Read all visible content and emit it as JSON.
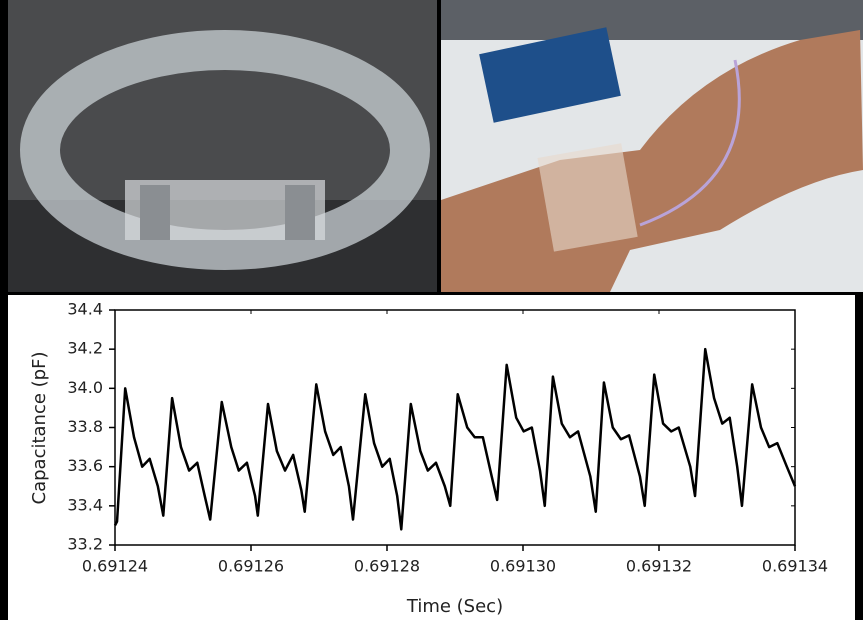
{
  "chart_data": {
    "type": "line",
    "x_label": "Time (Sec)",
    "y_label": "Capacitance (pF)",
    "xlim": [
      0.69124,
      0.69134
    ],
    "ylim": [
      33.2,
      34.4
    ],
    "xticks": [
      0.69124,
      0.69126,
      0.69128,
      {
        "value": 0.6913,
        "label": "0.69130"
      },
      0.69132,
      0.69134
    ],
    "yticks": [
      33.2,
      33.4,
      33.6,
      33.8,
      {
        "value": 34,
        "label": "34.0"
      },
      34.2,
      34.4
    ],
    "grid": false,
    "series": [
      {
        "color": "#000000",
        "x": [
          0.69124,
          0.6912403,
          0.6912415,
          0.6912428,
          0.691244,
          0.6912451,
          0.6912463,
          0.6912471,
          0.6912484,
          0.6912497,
          0.6912509,
          0.6912521,
          0.6912532,
          0.691254,
          0.6912557,
          0.6912571,
          0.6912582,
          0.6912594,
          0.6912606,
          0.691261,
          0.6912625,
          0.6912638,
          0.691265,
          0.6912662,
          0.6912674,
          0.6912679,
          0.6912696,
          0.6912709,
          0.6912721,
          0.6912732,
          0.6912744,
          0.691275,
          0.6912768,
          0.6912781,
          0.6912793,
          0.6912804,
          0.6912815,
          0.6912821,
          0.6912835,
          0.6912849,
          0.691286,
          0.6912872,
          0.6912885,
          0.6912893,
          0.6912904,
          0.6912918,
          0.6912929,
          0.6912941,
          0.6912954,
          0.6912962,
          0.6912976,
          0.691299,
          0.6913001,
          0.6913013,
          0.6913025,
          0.6913032,
          0.6913044,
          0.6913057,
          0.6913069,
          0.6913081,
          0.6913099,
          0.6913107,
          0.6913119,
          0.6913132,
          0.6913144,
          0.6913156,
          0.6913172,
          0.6913179,
          0.6913193,
          0.6913206,
          0.6913218,
          0.6913229,
          0.6913246,
          0.6913253,
          0.6913268,
          0.6913281,
          0.6913293,
          0.6913304,
          0.6913315,
          0.6913322,
          0.6913337,
          0.691335,
          0.6913362,
          0.6913374,
          0.6913388,
          0.69134
        ],
        "values": [
          33.3,
          33.32,
          34.0,
          33.75,
          33.6,
          33.64,
          33.5,
          33.35,
          33.95,
          33.7,
          33.58,
          33.62,
          33.45,
          33.33,
          33.93,
          33.7,
          33.58,
          33.62,
          33.45,
          33.35,
          33.92,
          33.68,
          33.58,
          33.66,
          33.48,
          33.37,
          34.02,
          33.78,
          33.66,
          33.7,
          33.5,
          33.33,
          33.97,
          33.72,
          33.6,
          33.64,
          33.45,
          33.28,
          33.92,
          33.68,
          33.58,
          33.62,
          33.5,
          33.4,
          33.97,
          33.8,
          33.75,
          33.75,
          33.55,
          33.43,
          34.12,
          33.85,
          33.78,
          33.8,
          33.58,
          33.4,
          34.06,
          33.82,
          33.75,
          33.78,
          33.55,
          33.37,
          34.03,
          33.8,
          33.74,
          33.76,
          33.55,
          33.4,
          34.07,
          33.82,
          33.78,
          33.8,
          33.6,
          33.45,
          34.2,
          33.95,
          33.82,
          33.85,
          33.6,
          33.4,
          34.02,
          33.8,
          33.7,
          33.72,
          33.6,
          33.5
        ]
      }
    ]
  }
}
